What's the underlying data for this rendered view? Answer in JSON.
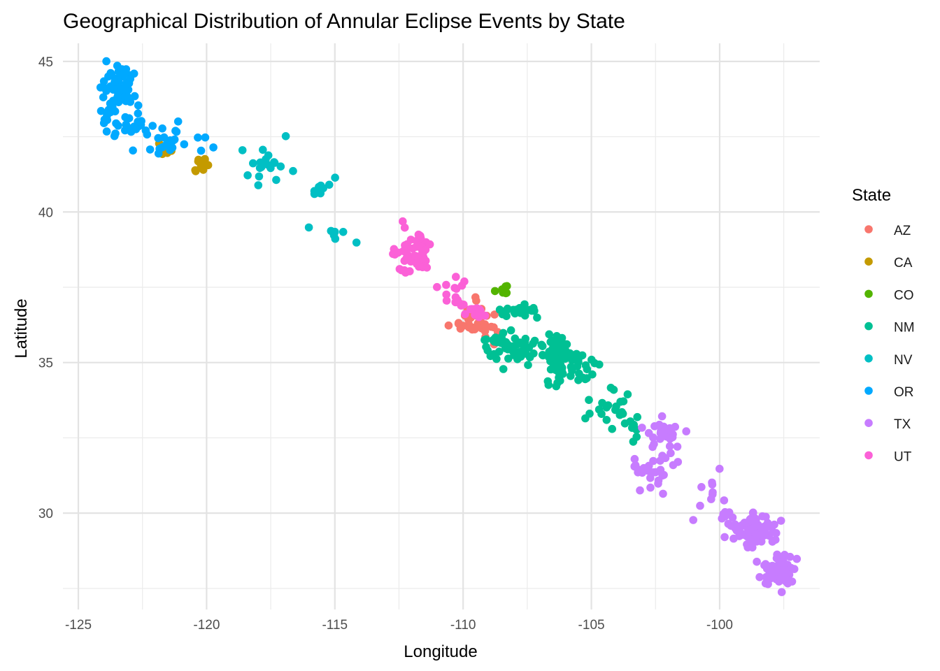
{
  "chart_data": {
    "type": "scatter",
    "title": "Geographical Distribution of Annular Eclipse Events by State",
    "xlabel": "Longitude",
    "ylabel": "Latitude",
    "xlim": [
      -125.6,
      -96.1
    ],
    "ylim": [
      26.8,
      45.6
    ],
    "x_ticks": [
      -125,
      -120,
      -115,
      -110,
      -105,
      -100
    ],
    "x_tick_labels": [
      "-125",
      "-120",
      "-115",
      "-110",
      "-105",
      "-100"
    ],
    "y_ticks": [
      30,
      35,
      40,
      45
    ],
    "y_tick_labels": [
      "30",
      "35",
      "40",
      "45"
    ],
    "grid": true,
    "legend": {
      "title": "State",
      "position": "right"
    },
    "series": [
      {
        "name": "AZ",
        "color": "#F8766D",
        "clusters": [
          {
            "cx": -109.6,
            "cy": 36.5,
            "sx": 0.5,
            "sy": 0.35,
            "n": 30
          },
          {
            "cx": -109.0,
            "cy": 36.0,
            "sx": 0.3,
            "sy": 0.3,
            "n": 8
          }
        ]
      },
      {
        "name": "CA",
        "color": "#C49A00",
        "clusters": [
          {
            "cx": -121.7,
            "cy": 42.1,
            "sx": 0.35,
            "sy": 0.12,
            "n": 10
          },
          {
            "cx": -120.3,
            "cy": 41.6,
            "sx": 0.25,
            "sy": 0.22,
            "n": 12
          }
        ]
      },
      {
        "name": "CO",
        "color": "#53B400",
        "clusters": [
          {
            "cx": -108.5,
            "cy": 37.4,
            "sx": 0.25,
            "sy": 0.15,
            "n": 8
          }
        ]
      },
      {
        "name": "NM",
        "color": "#00C094",
        "clusters": [
          {
            "cx": -108.0,
            "cy": 36.7,
            "sx": 0.6,
            "sy": 0.15,
            "n": 25
          },
          {
            "cx": -108.1,
            "cy": 35.5,
            "sx": 0.65,
            "sy": 0.4,
            "n": 60
          },
          {
            "cx": -106.3,
            "cy": 35.2,
            "sx": 0.35,
            "sy": 0.5,
            "n": 90
          },
          {
            "cx": -105.3,
            "cy": 34.9,
            "sx": 0.35,
            "sy": 0.35,
            "n": 15
          },
          {
            "cx": -104.2,
            "cy": 33.6,
            "sx": 0.8,
            "sy": 0.5,
            "n": 22
          },
          {
            "cx": -103.3,
            "cy": 32.8,
            "sx": 0.2,
            "sy": 0.6,
            "n": 6
          }
        ]
      },
      {
        "name": "NV",
        "color": "#00B6EB",
        "clusters": [
          {
            "cx": -117.6,
            "cy": 41.5,
            "sx": 0.55,
            "sy": 0.55,
            "n": 18
          },
          {
            "cx": -115.6,
            "cy": 40.8,
            "sx": 0.3,
            "sy": 0.15,
            "n": 8
          },
          {
            "cx": -115.0,
            "cy": 41.1,
            "sx": 0.05,
            "sy": 0.05,
            "n": 1
          },
          {
            "cx": -114.8,
            "cy": 39.3,
            "sx": 0.3,
            "sy": 0.15,
            "n": 5
          },
          {
            "cx": -116.0,
            "cy": 39.5,
            "sx": 0.05,
            "sy": 0.05,
            "n": 1
          },
          {
            "cx": -114.2,
            "cy": 39.0,
            "sx": 0.05,
            "sy": 0.05,
            "n": 1
          },
          {
            "cx": -118.6,
            "cy": 42.0,
            "sx": 0.05,
            "sy": 0.05,
            "n": 1
          }
        ]
      },
      {
        "name": "OR",
        "color": "#A58AFF",
        "clusters": [
          {
            "cx": -123.4,
            "cy": 44.2,
            "sx": 0.5,
            "sy": 0.45,
            "n": 55
          },
          {
            "cx": -123.9,
            "cy": 43.3,
            "sx": 0.25,
            "sy": 0.4,
            "n": 15
          },
          {
            "cx": -122.8,
            "cy": 42.8,
            "sx": 0.6,
            "sy": 0.4,
            "n": 25
          },
          {
            "cx": -121.5,
            "cy": 42.4,
            "sx": 0.5,
            "sy": 0.5,
            "n": 18
          },
          {
            "cx": -120.2,
            "cy": 42.2,
            "sx": 0.25,
            "sy": 0.25,
            "n": 4
          }
        ]
      },
      {
        "name": "TX",
        "color": "#C77CFF",
        "clusters": [
          {
            "cx": -102.3,
            "cy": 32.6,
            "sx": 0.6,
            "sy": 0.45,
            "n": 30
          },
          {
            "cx": -102.5,
            "cy": 31.3,
            "sx": 0.8,
            "sy": 0.45,
            "n": 25
          },
          {
            "cx": -100.5,
            "cy": 30.5,
            "sx": 0.5,
            "sy": 0.6,
            "n": 10
          },
          {
            "cx": -98.6,
            "cy": 29.4,
            "sx": 0.55,
            "sy": 0.35,
            "n": 80
          },
          {
            "cx": -97.6,
            "cy": 28.1,
            "sx": 0.5,
            "sy": 0.35,
            "n": 70
          },
          {
            "cx": -99.5,
            "cy": 29.6,
            "sx": 0.4,
            "sy": 0.35,
            "n": 12
          }
        ]
      },
      {
        "name": "UT",
        "color": "#FB61D7",
        "clusters": [
          {
            "cx": -112.0,
            "cy": 38.7,
            "sx": 0.45,
            "sy": 0.5,
            "n": 55
          },
          {
            "cx": -110.3,
            "cy": 37.2,
            "sx": 0.45,
            "sy": 0.35,
            "n": 15
          },
          {
            "cx": -109.4,
            "cy": 36.6,
            "sx": 0.35,
            "sy": 0.35,
            "n": 10
          }
        ]
      }
    ]
  }
}
